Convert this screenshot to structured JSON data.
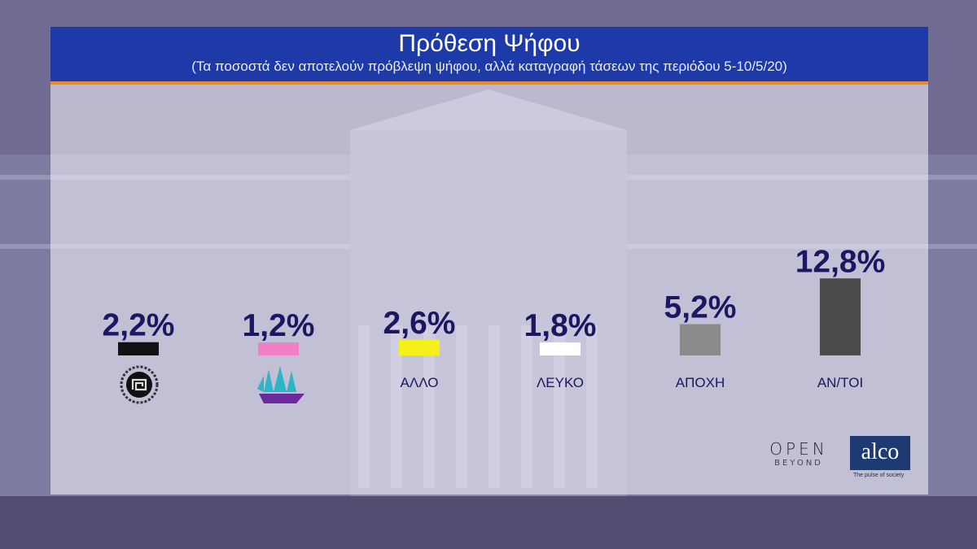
{
  "header": {
    "title": "Πρόθεση Ψήφου",
    "subtitle": "(Τα ποσοστά δεν αποτελούν πρόβλεψη ψήφου, αλλά καταγραφή τάσεων της περιόδου 5-10/5/20)"
  },
  "colors": {
    "header_bg": "#1d3aa8",
    "header_border": "#f08a1c",
    "value_text": "#1c1760"
  },
  "chart_data": {
    "type": "bar",
    "title": "Πρόθεση Ψήφου",
    "subtitle": "(Τα ποσοστά δεν αποτελούν πρόβλεψη ψήφου, αλλά καταγραφή τάσεων της περιόδου 5-10/5/20)",
    "unit": "%",
    "categories": [
      "",
      "",
      "ΑΛΛΟ",
      "ΛΕΥΚΟ",
      "ΑΠΟΧΗ",
      "ΑΝ/ΤΟΙ"
    ],
    "category_icons": [
      "golden-dawn-logo-icon",
      "ship-logo-icon",
      "",
      "",
      "",
      ""
    ],
    "values": [
      2.2,
      1.2,
      2.6,
      1.8,
      5.2,
      12.8
    ],
    "value_labels": [
      "2,2%",
      "1,2%",
      "2,6%",
      "1,8%",
      "5,2%",
      "12,8%"
    ],
    "bar_colors": [
      "#111111",
      "#f07fc4",
      "#f5ef1a",
      "#ffffff",
      "#8a8a8a",
      "#4a4a4a"
    ],
    "grid": false
  },
  "logos": {
    "open_line1": "OPEN",
    "open_line2": "BEYOND",
    "alco_name": "alco",
    "alco_tagline": "The pulse of society"
  }
}
